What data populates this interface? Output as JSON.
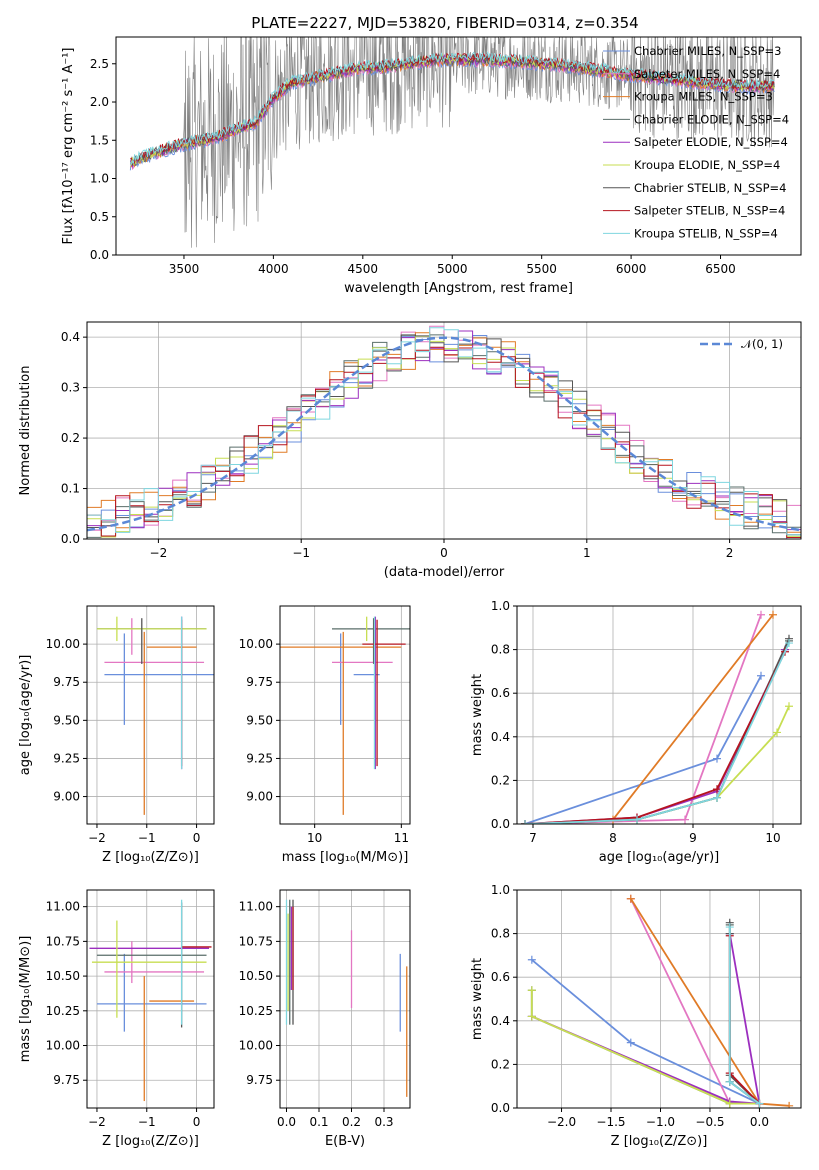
{
  "figure": {
    "title": "PLATE=2227, MJD=53820, FIBERID=0314, z=0.354"
  },
  "colors": {
    "Chabrier MILES": "#6a8fdc",
    "Salpeter MILES": "#e377c2",
    "Kroupa MILES": "#e07b27",
    "Chabrier ELODIE": "#5a6e6a",
    "Salpeter ELODIE": "#9c2fbf",
    "Kroupa ELODIE": "#c7de52",
    "Chabrier STELIB": "#555555",
    "Salpeter STELIB": "#b5141f",
    "Kroupa STELIB": "#7fd6df",
    "data": "#808080",
    "normal": "#5b88d6"
  },
  "chart_data": [
    {
      "id": "spectrum",
      "type": "line",
      "xlabel": "wavelength [Angstrom, rest frame]",
      "ylabel": "Flux [fλ10⁻¹⁷ erg cm⁻² s⁻¹ A⁻¹]",
      "xlim": [
        3120,
        6950
      ],
      "ylim": [
        0,
        2.85
      ],
      "xticks": [
        3500,
        4000,
        4500,
        5000,
        5500,
        6000,
        6500
      ],
      "yticks": [
        0.0,
        0.5,
        1.0,
        1.5,
        2.0,
        2.5
      ],
      "xtick_labels": [
        "3500",
        "4000",
        "4500",
        "5000",
        "5500",
        "6000",
        "6500"
      ],
      "ytick_labels": [
        "0.0",
        "0.5",
        "1.0",
        "1.5",
        "2.0",
        "2.5"
      ],
      "legend_position": "right",
      "legend": [
        "Chabrier MILES, N_SSP=3",
        "Salpeter MILES, N_SSP=4",
        "Kroupa MILES, N_SSP=3",
        "Chabrier ELODIE, N_SSP=4",
        "Salpeter ELODIE, N_SSP=4",
        "Kroupa ELODIE, N_SSP=4",
        "Chabrier STELIB, N_SSP=4",
        "Salpeter STELIB, N_SSP=4",
        "Kroupa STELIB, N_SSP=4"
      ],
      "model_continuum": {
        "x": [
          3200,
          3300,
          3400,
          3500,
          3600,
          3700,
          3800,
          3900,
          4000,
          4100,
          4200,
          4300,
          4400,
          4500,
          4600,
          4700,
          4800,
          4900,
          5000,
          5200,
          5400,
          5600,
          5800,
          6000,
          6200,
          6400,
          6600,
          6800
        ],
        "y": [
          1.2,
          1.3,
          1.38,
          1.45,
          1.5,
          1.55,
          1.65,
          1.72,
          2.05,
          2.25,
          2.3,
          2.35,
          2.4,
          2.45,
          2.45,
          2.48,
          2.52,
          2.55,
          2.55,
          2.55,
          2.52,
          2.48,
          2.42,
          2.35,
          2.3,
          2.25,
          2.2,
          2.2
        ]
      },
      "data_noise_range": [
        0,
        2.85
      ]
    },
    {
      "id": "residuals",
      "type": "histogram",
      "xlabel": "(data-model)/error",
      "ylabel": "Normed distribution",
      "xlim": [
        -2.5,
        2.5
      ],
      "ylim": [
        0,
        0.43
      ],
      "xticks": [
        -2,
        -1,
        0,
        1,
        2
      ],
      "yticks": [
        0.0,
        0.1,
        0.2,
        0.3,
        0.4
      ],
      "xtick_labels": [
        "−2",
        "−1",
        "0",
        "1",
        "2"
      ],
      "ytick_labels": [
        "0.0",
        "0.1",
        "0.2",
        "0.3",
        "0.4"
      ],
      "grid": true,
      "legend": [
        "𝒩(0, 1)"
      ],
      "legend_position": "top-right",
      "bin_width": 0.1,
      "normal_curve": {
        "mean": 0,
        "sigma": 1
      }
    },
    {
      "id": "age-vs-Z",
      "type": "errorbar",
      "xlabel": "Z [log₁₀(Z/Z⊙)]",
      "ylabel": "age  [log₁₀(age/yr)]",
      "xlim": [
        -2.2,
        0.35
      ],
      "ylim": [
        8.82,
        10.25
      ],
      "xticks": [
        -2,
        -1,
        0
      ],
      "yticks": [
        9.0,
        9.25,
        9.5,
        9.75,
        10.0
      ],
      "xtick_labels": [
        "−2",
        "−1",
        "0"
      ],
      "ytick_labels": [
        "9.00",
        "9.25",
        "9.50",
        "9.75",
        "10.00"
      ],
      "grid": true,
      "points": [
        {
          "model": "Chabrier MILES",
          "x": -0.6,
          "xerr": 1.25,
          "y": 9.8,
          "yerr": 0.0
        },
        {
          "model": "Chabrier MILES",
          "x": -1.45,
          "xerr": 0.0,
          "y": 9.77,
          "yerr": 0.3
        },
        {
          "model": "Salpeter MILES",
          "x": -0.85,
          "xerr": 1.0,
          "y": 9.88,
          "yerr": 0.0
        },
        {
          "model": "Salpeter MILES",
          "x": -1.3,
          "xerr": 0.0,
          "y": 10.05,
          "yerr": 0.12
        },
        {
          "model": "Kroupa MILES",
          "x": -1.05,
          "xerr": 0.0,
          "y": 9.48,
          "yerr": 0.6
        },
        {
          "model": "Kroupa MILES",
          "x": -0.5,
          "xerr": 0.5,
          "y": 9.98,
          "yerr": 0.0
        },
        {
          "model": "Chabrier ELODIE",
          "x": -0.9,
          "xerr": 1.1,
          "y": 10.1,
          "yerr": 0.0
        },
        {
          "model": "Salpeter ELODIE",
          "x": -0.3,
          "xerr": 0.0,
          "y": 9.68,
          "yerr": 0.5
        },
        {
          "model": "Kroupa ELODIE",
          "x": -1.6,
          "xerr": 0.0,
          "y": 10.1,
          "yerr": 0.08
        },
        {
          "model": "Kroupa ELODIE",
          "x": -0.9,
          "xerr": 1.1,
          "y": 10.1,
          "yerr": 0.0
        },
        {
          "model": "Chabrier STELIB",
          "x": -1.1,
          "xerr": 0.0,
          "y": 10.02,
          "yerr": 0.15
        },
        {
          "model": "Salpeter STELIB",
          "x": -0.3,
          "xerr": 0.0,
          "y": 9.68,
          "yerr": 0.48
        },
        {
          "model": "Kroupa STELIB",
          "x": -0.3,
          "xerr": 0.0,
          "y": 9.68,
          "yerr": 0.5
        }
      ]
    },
    {
      "id": "age-vs-mass",
      "type": "errorbar",
      "xlabel": "mass [log₁₀(M/M⊙)]",
      "ylabel": "",
      "xlim": [
        9.6,
        11.1
      ],
      "ylim": [
        8.82,
        10.25
      ],
      "xticks": [
        10,
        11
      ],
      "yticks": [
        9.0,
        9.25,
        9.5,
        9.75,
        10.0
      ],
      "xtick_labels": [
        "10",
        "11"
      ],
      "ytick_labels": [
        "9.00",
        "9.25",
        "9.50",
        "9.75",
        "10.00"
      ],
      "grid": true,
      "points": [
        {
          "model": "Chabrier MILES",
          "x": 10.3,
          "xerr": 0.0,
          "y": 9.77,
          "yerr": 0.3
        },
        {
          "model": "Chabrier MILES",
          "x": 10.6,
          "xerr": 0.15,
          "y": 9.8,
          "yerr": 0.0
        },
        {
          "model": "Salpeter MILES",
          "x": 10.55,
          "xerr": 0.35,
          "y": 9.88,
          "yerr": 0.0
        },
        {
          "model": "Kroupa MILES",
          "x": 10.33,
          "xerr": 0.0,
          "y": 9.48,
          "yerr": 0.6
        },
        {
          "model": "Kroupa MILES",
          "x": 10.3,
          "xerr": 0.7,
          "y": 9.98,
          "yerr": 0.0
        },
        {
          "model": "Chabrier ELODIE",
          "x": 10.65,
          "xerr": 0.45,
          "y": 10.1,
          "yerr": 0.0
        },
        {
          "model": "Salpeter ELODIE",
          "x": 10.7,
          "xerr": 0.0,
          "y": 9.68,
          "yerr": 0.5
        },
        {
          "model": "Kroupa ELODIE",
          "x": 10.6,
          "xerr": 0.0,
          "y": 10.1,
          "yerr": 0.08
        },
        {
          "model": "Chabrier STELIB",
          "x": 10.68,
          "xerr": 0.0,
          "y": 10.02,
          "yerr": 0.15
        },
        {
          "model": "Salpeter STELIB",
          "x": 10.72,
          "xerr": 0.0,
          "y": 9.68,
          "yerr": 0.48
        },
        {
          "model": "Salpeter STELIB",
          "x": 10.8,
          "xerr": 0.25,
          "y": 10.0,
          "yerr": 0.0
        },
        {
          "model": "Kroupa STELIB",
          "x": 10.69,
          "xerr": 0.0,
          "y": 9.68,
          "yerr": 0.5
        }
      ]
    },
    {
      "id": "mass-weight-vs-age",
      "type": "line",
      "xlabel": "age  [log₁₀(age/yr)]",
      "ylabel": "mass weight",
      "xlim": [
        6.8,
        10.35
      ],
      "ylim": [
        0,
        1.0
      ],
      "xticks": [
        7,
        8,
        9,
        10
      ],
      "yticks": [
        0.0,
        0.2,
        0.4,
        0.6,
        0.8,
        1.0
      ],
      "xtick_labels": [
        "7",
        "8",
        "9",
        "10"
      ],
      "ytick_labels": [
        "0.0",
        "0.2",
        "0.4",
        "0.6",
        "0.8",
        "1.0"
      ],
      "grid": true,
      "series": [
        {
          "model": "Chabrier MILES",
          "x": [
            6.9,
            9.3,
            9.85
          ],
          "y": [
            0.0,
            0.3,
            0.68
          ]
        },
        {
          "model": "Salpeter MILES",
          "x": [
            6.9,
            8.9,
            9.85
          ],
          "y": [
            0.0,
            0.02,
            0.96
          ]
        },
        {
          "model": "Kroupa MILES",
          "x": [
            6.9,
            8.0,
            10.0
          ],
          "y": [
            0.0,
            0.02,
            0.96
          ]
        },
        {
          "model": "Chabrier ELODIE",
          "x": [
            6.9,
            8.3,
            9.3,
            10.2
          ],
          "y": [
            0.0,
            0.02,
            0.12,
            0.84
          ]
        },
        {
          "model": "Salpeter ELODIE",
          "x": [
            6.9,
            8.3,
            9.3,
            10.15
          ],
          "y": [
            0.0,
            0.03,
            0.15,
            0.8
          ]
        },
        {
          "model": "Kroupa ELODIE",
          "x": [
            6.9,
            8.3,
            9.3,
            10.05,
            10.2
          ],
          "y": [
            0.0,
            0.02,
            0.12,
            0.42,
            0.54
          ]
        },
        {
          "model": "Chabrier STELIB",
          "x": [
            6.9,
            8.3,
            9.3,
            10.2
          ],
          "y": [
            0.0,
            0.02,
            0.12,
            0.85
          ]
        },
        {
          "model": "Salpeter STELIB",
          "x": [
            6.9,
            8.3,
            9.3,
            10.15
          ],
          "y": [
            0.0,
            0.03,
            0.16,
            0.79
          ]
        },
        {
          "model": "Kroupa STELIB",
          "x": [
            6.9,
            8.3,
            9.3,
            10.2
          ],
          "y": [
            0.0,
            0.02,
            0.12,
            0.83
          ]
        }
      ]
    },
    {
      "id": "mass-vs-Z",
      "type": "errorbar",
      "xlabel": "Z [log₁₀(Z/Z⊙)]",
      "ylabel": "mass [log₁₀(M/M⊙)]",
      "xlim": [
        -2.2,
        0.35
      ],
      "ylim": [
        9.55,
        11.12
      ],
      "xticks": [
        -2,
        -1,
        0
      ],
      "yticks": [
        9.75,
        10.0,
        10.25,
        10.5,
        10.75,
        11.0
      ],
      "xtick_labels": [
        "−2",
        "−1",
        "0"
      ],
      "ytick_labels": [
        "9.75",
        "10.00",
        "10.25",
        "10.50",
        "10.75",
        "11.00"
      ],
      "grid": true,
      "points": [
        {
          "model": "Chabrier MILES",
          "x": -0.9,
          "xerr": 1.1,
          "y": 10.3,
          "yerr": 0.0
        },
        {
          "model": "Chabrier MILES",
          "x": -1.45,
          "xerr": 0.0,
          "y": 10.38,
          "yerr": 0.28
        },
        {
          "model": "Salpeter MILES",
          "x": -0.85,
          "xerr": 1.0,
          "y": 10.53,
          "yerr": 0.0
        },
        {
          "model": "Salpeter MILES",
          "x": -1.3,
          "xerr": 0.0,
          "y": 10.6,
          "yerr": 0.15
        },
        {
          "model": "Kroupa MILES",
          "x": -1.05,
          "xerr": 0.0,
          "y": 10.05,
          "yerr": 0.45
        },
        {
          "model": "Kroupa MILES",
          "x": -0.5,
          "xerr": 0.45,
          "y": 10.32,
          "yerr": 0.0
        },
        {
          "model": "Chabrier ELODIE",
          "x": -0.9,
          "xerr": 1.1,
          "y": 10.65,
          "yerr": 0.0
        },
        {
          "model": "Salpeter ELODIE",
          "x": -0.95,
          "xerr": 1.2,
          "y": 10.7,
          "yerr": 0.0
        },
        {
          "model": "Kroupa ELODIE",
          "x": -1.6,
          "xerr": 0.0,
          "y": 10.55,
          "yerr": 0.35
        },
        {
          "model": "Kroupa ELODIE",
          "x": -0.95,
          "xerr": 1.15,
          "y": 10.6,
          "yerr": 0.0
        },
        {
          "model": "Chabrier STELIB",
          "x": -0.3,
          "xerr": 0.0,
          "y": 10.58,
          "yerr": 0.45
        },
        {
          "model": "Salpeter STELIB",
          "x": 0.0,
          "xerr": 0.3,
          "y": 10.71,
          "yerr": 0.0
        },
        {
          "model": "Kroupa STELIB",
          "x": -0.3,
          "xerr": 0.0,
          "y": 10.6,
          "yerr": 0.45
        }
      ]
    },
    {
      "id": "mass-vs-ebv",
      "type": "errorbar",
      "xlabel": "E(B-V)",
      "ylabel": "",
      "xlim": [
        -0.02,
        0.38
      ],
      "ylim": [
        9.55,
        11.12
      ],
      "xticks": [
        0.0,
        0.1,
        0.2,
        0.3
      ],
      "yticks": [
        9.75,
        10.0,
        10.25,
        10.5,
        10.75,
        11.0
      ],
      "xtick_labels": [
        "0.0",
        "0.1",
        "0.2",
        "0.3"
      ],
      "ytick_labels": [
        "9.75",
        "10.00",
        "10.25",
        "10.50",
        "10.75",
        "11.00"
      ],
      "grid": true,
      "points": [
        {
          "model": "Chabrier MILES",
          "x": 0.35,
          "xerr": 0.0,
          "y": 10.38,
          "yerr": 0.28
        },
        {
          "model": "Salpeter MILES",
          "x": 0.2,
          "xerr": 0.0,
          "y": 10.55,
          "yerr": 0.28
        },
        {
          "model": "Kroupa MILES",
          "x": 0.37,
          "xerr": 0.0,
          "y": 10.1,
          "yerr": 0.47
        },
        {
          "model": "Chabrier ELODIE",
          "x": 0.01,
          "xerr": 0.0,
          "y": 10.6,
          "yerr": 0.45
        },
        {
          "model": "Salpeter ELODIE",
          "x": 0.015,
          "xerr": 0.0,
          "y": 10.7,
          "yerr": 0.3
        },
        {
          "model": "Kroupa ELODIE",
          "x": 0.005,
          "xerr": 0.0,
          "y": 10.6,
          "yerr": 0.35
        },
        {
          "model": "Chabrier STELIB",
          "x": 0.02,
          "xerr": 0.0,
          "y": 10.6,
          "yerr": 0.45
        },
        {
          "model": "Salpeter STELIB",
          "x": 0.02,
          "xerr": 0.0,
          "y": 10.7,
          "yerr": 0.3
        },
        {
          "model": "Kroupa STELIB",
          "x": 0.0,
          "xerr": 0.0,
          "y": 10.6,
          "yerr": 0.45
        }
      ]
    },
    {
      "id": "mass-weight-vs-Z",
      "type": "line",
      "xlabel": "Z [log₁₀(Z/Z⊙)]",
      "ylabel": "mass weight",
      "xlim": [
        -2.45,
        0.42
      ],
      "ylim": [
        0,
        1.0
      ],
      "xticks": [
        -2.0,
        -1.5,
        -1.0,
        -0.5,
        0.0
      ],
      "yticks": [
        0.0,
        0.2,
        0.4,
        0.6,
        0.8,
        1.0
      ],
      "xtick_labels": [
        "−2.0",
        "−1.5",
        "−1.0",
        "−0.5",
        "0.0"
      ],
      "ytick_labels": [
        "0.0",
        "0.2",
        "0.4",
        "0.6",
        "0.8",
        "1.0"
      ],
      "grid": true,
      "series": [
        {
          "model": "Chabrier MILES",
          "x": [
            -2.3,
            -1.3,
            0.0
          ],
          "y": [
            0.68,
            0.3,
            0.02
          ]
        },
        {
          "model": "Salpeter MILES",
          "x": [
            -1.3,
            -0.3,
            0.0
          ],
          "y": [
            0.96,
            0.02,
            0.02
          ]
        },
        {
          "model": "Kroupa MILES",
          "x": [
            -1.3,
            0.0,
            0.3
          ],
          "y": [
            0.96,
            0.02,
            0.01
          ]
        },
        {
          "model": "Chabrier ELODIE",
          "x": [
            -2.3,
            -2.3,
            -0.3,
            0.0,
            -0.3,
            -0.3
          ],
          "y": [
            0.54,
            0.42,
            0.02,
            0.02,
            0.12,
            0.84
          ]
        },
        {
          "model": "Salpeter ELODIE",
          "x": [
            -2.3,
            -0.3,
            0.0,
            -0.3
          ],
          "y": [
            0.42,
            0.03,
            0.02,
            0.8
          ]
        },
        {
          "model": "Kroupa ELODIE",
          "x": [
            -2.3,
            -2.3,
            -0.3,
            0.0
          ],
          "y": [
            0.54,
            0.42,
            0.02,
            0.02
          ]
        },
        {
          "model": "Chabrier STELIB",
          "x": [
            -0.3,
            -0.3,
            0.0,
            -0.3,
            -0.3
          ],
          "y": [
            0.85,
            0.15,
            0.02,
            0.12,
            0.8
          ]
        },
        {
          "model": "Salpeter STELIB",
          "x": [
            -0.3,
            -0.3,
            0.0
          ],
          "y": [
            0.79,
            0.16,
            0.02
          ]
        },
        {
          "model": "Kroupa STELIB",
          "x": [
            -0.3,
            -0.3,
            0.0
          ],
          "y": [
            0.83,
            0.12,
            0.02
          ]
        }
      ]
    }
  ]
}
